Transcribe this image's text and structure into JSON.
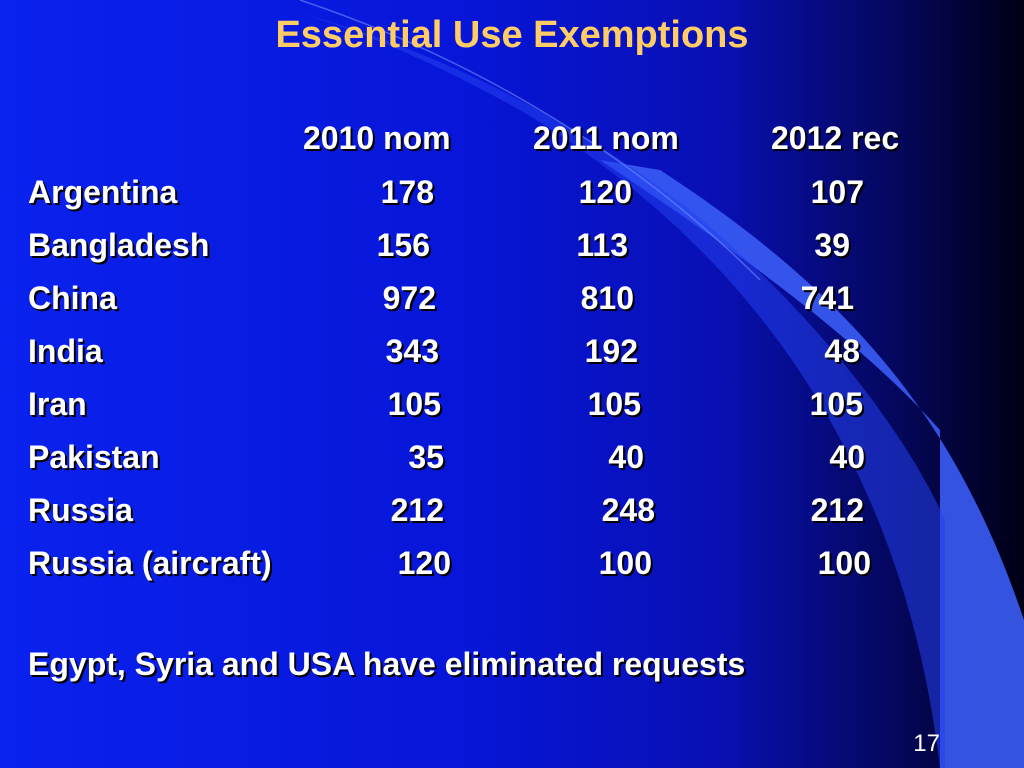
{
  "slide": {
    "title": "Essential Use Exemptions",
    "columns": [
      "2010 nom",
      "2011 nom",
      "2012 rec"
    ],
    "rows": [
      {
        "country": "Argentina",
        "values": [
          "178",
          "120",
          "107"
        ]
      },
      {
        "country": "Bangladesh",
        "values": [
          "156",
          "113",
          "39"
        ]
      },
      {
        "country": "China",
        "values": [
          "972",
          "810",
          "741"
        ]
      },
      {
        "country": "India",
        "values": [
          "343",
          "192",
          "48"
        ]
      },
      {
        "country": "Iran",
        "values": [
          "105",
          "105",
          "105"
        ]
      },
      {
        "country": "Pakistan",
        "values": [
          "35",
          "40",
          "40"
        ]
      },
      {
        "country": "Russia",
        "values": [
          "212",
          "248",
          "212"
        ]
      },
      {
        "country": "Russia (aircraft)",
        "values": [
          "120",
          "100",
          "100"
        ]
      }
    ],
    "note": "Egypt, Syria and USA have eliminated requests",
    "page_number": "17"
  },
  "colors": {
    "title": "#ffcc66",
    "text": "#ffffff",
    "background": "#0716d8",
    "accent_shape": "#3a5cf5"
  }
}
